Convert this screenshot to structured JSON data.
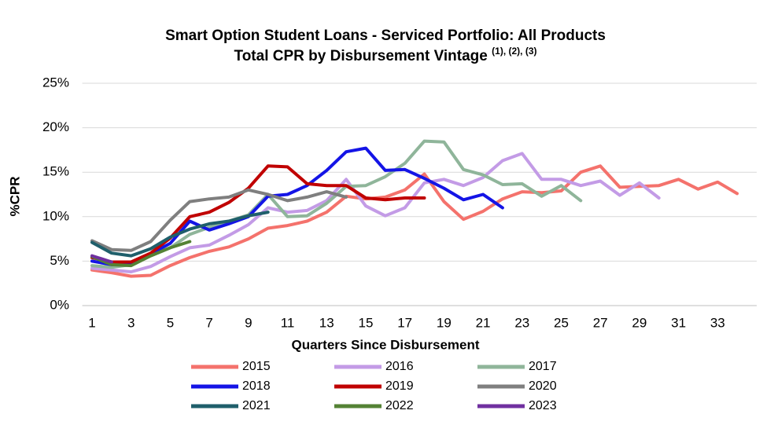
{
  "chart_data": {
    "type": "line",
    "title": "Smart Option Student Loans - Serviced Portfolio: All Products",
    "subtitle": "Total CPR by Disbursement Vintage",
    "subtitle_note": "(1), (2), (3)",
    "x_label": "Quarters Since Disbursement",
    "y_label": "%CPR",
    "x": [
      1,
      2,
      3,
      4,
      5,
      6,
      7,
      8,
      9,
      10,
      11,
      12,
      13,
      14,
      15,
      16,
      17,
      18,
      19,
      20,
      21,
      22,
      23,
      24,
      25,
      26,
      27,
      28,
      29,
      30,
      31,
      32,
      33,
      34
    ],
    "xlim": [
      0.5,
      35
    ],
    "xticks": [
      1,
      3,
      5,
      7,
      9,
      11,
      13,
      15,
      17,
      19,
      21,
      23,
      25,
      27,
      29,
      31,
      33
    ],
    "ylim": [
      0,
      25
    ],
    "yticks": [
      {
        "value": 0,
        "label": "0%"
      },
      {
        "value": 5,
        "label": "5%"
      },
      {
        "value": 10,
        "label": "10%"
      },
      {
        "value": 15,
        "label": "15%"
      },
      {
        "value": 20,
        "label": "20%"
      },
      {
        "value": 25,
        "label": "25%"
      }
    ],
    "grid": true,
    "series": [
      {
        "name": "2015",
        "color": "#f4726c",
        "values": [
          4.0,
          3.7,
          3.3,
          3.4,
          4.5,
          5.4,
          6.1,
          6.6,
          7.5,
          8.7,
          9.0,
          9.5,
          10.5,
          12.3,
          12.0,
          12.2,
          13.0,
          14.8,
          11.7,
          9.7,
          10.6,
          12.0,
          12.8,
          12.7,
          12.9,
          15.0,
          15.7,
          13.3,
          13.4,
          13.5,
          14.2,
          13.1,
          13.9,
          12.6
        ]
      },
      {
        "name": "2016",
        "color": "#c39be6",
        "values": [
          4.2,
          4.0,
          3.8,
          4.4,
          5.5,
          6.5,
          6.8,
          7.9,
          9.1,
          11.0,
          10.5,
          10.7,
          11.8,
          14.2,
          11.2,
          10.1,
          11.0,
          13.8,
          14.2,
          13.5,
          14.4,
          16.3,
          17.1,
          14.2,
          14.2,
          13.5,
          14.0,
          12.4,
          13.8,
          12.1,
          null,
          null,
          null,
          null
        ]
      },
      {
        "name": "2017",
        "color": "#8fb59a",
        "values": [
          4.5,
          4.3,
          4.6,
          5.6,
          6.5,
          8.0,
          8.8,
          9.5,
          10.2,
          12.5,
          10.0,
          10.1,
          11.5,
          13.4,
          13.5,
          14.5,
          16.0,
          18.5,
          18.4,
          15.3,
          14.7,
          13.6,
          13.7,
          12.3,
          13.5,
          11.8,
          null,
          null,
          null,
          null,
          null,
          null,
          null,
          null
        ]
      },
      {
        "name": "2018",
        "color": "#1414e6",
        "values": [
          5.0,
          4.6,
          4.8,
          5.8,
          7.0,
          9.5,
          8.5,
          9.2,
          10.0,
          12.3,
          12.5,
          13.5,
          15.2,
          17.3,
          17.7,
          15.2,
          15.3,
          14.3,
          13.2,
          11.9,
          12.5,
          11.0,
          null,
          null,
          null,
          null,
          null,
          null,
          null,
          null,
          null,
          null,
          null,
          null
        ]
      },
      {
        "name": "2019",
        "color": "#c00000",
        "values": [
          5.4,
          4.9,
          4.9,
          5.9,
          7.6,
          10.0,
          10.5,
          11.6,
          13.2,
          15.7,
          15.6,
          13.7,
          13.5,
          13.5,
          12.1,
          11.9,
          12.1,
          12.1,
          null,
          null,
          null,
          null,
          null,
          null,
          null,
          null,
          null,
          null,
          null,
          null,
          null,
          null,
          null,
          null
        ]
      },
      {
        "name": "2020",
        "color": "#7f7f7f",
        "values": [
          7.3,
          6.3,
          6.2,
          7.2,
          9.6,
          11.7,
          12.0,
          12.2,
          13.0,
          12.5,
          11.8,
          12.2,
          12.8,
          12.2,
          null,
          null,
          null,
          null,
          null,
          null,
          null,
          null,
          null,
          null,
          null,
          null,
          null,
          null,
          null,
          null,
          null,
          null,
          null,
          null
        ]
      },
      {
        "name": "2021",
        "color": "#1f5f6b",
        "values": [
          7.1,
          5.9,
          5.6,
          6.4,
          7.7,
          8.6,
          9.2,
          9.5,
          10.1,
          10.5,
          null,
          null,
          null,
          null,
          null,
          null,
          null,
          null,
          null,
          null,
          null,
          null,
          null,
          null,
          null,
          null,
          null,
          null,
          null,
          null,
          null,
          null,
          null,
          null
        ]
      },
      {
        "name": "2022",
        "color": "#548235",
        "values": [
          5.5,
          4.6,
          4.5,
          5.6,
          6.5,
          7.2,
          null,
          null,
          null,
          null,
          null,
          null,
          null,
          null,
          null,
          null,
          null,
          null,
          null,
          null,
          null,
          null,
          null,
          null,
          null,
          null,
          null,
          null,
          null,
          null,
          null,
          null,
          null,
          null
        ]
      },
      {
        "name": "2023",
        "color": "#7030a0",
        "values": [
          5.6,
          4.9,
          null,
          null,
          null,
          null,
          null,
          null,
          null,
          null,
          null,
          null,
          null,
          null,
          null,
          null,
          null,
          null,
          null,
          null,
          null,
          null,
          null,
          null,
          null,
          null,
          null,
          null,
          null,
          null,
          null,
          null,
          null,
          null
        ]
      }
    ]
  }
}
